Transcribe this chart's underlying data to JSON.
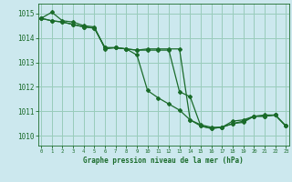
{
  "background_color": "#cce8ee",
  "grid_color": "#99ccbb",
  "line_color": "#1a6b2a",
  "xlabel": "Graphe pression niveau de la mer (hPa)",
  "ylim": [
    1009.6,
    1015.4
  ],
  "xlim": [
    -0.3,
    23.3
  ],
  "yticks": [
    1010,
    1011,
    1012,
    1013,
    1014,
    1015
  ],
  "xticks": [
    0,
    1,
    2,
    3,
    4,
    5,
    6,
    7,
    8,
    9,
    10,
    11,
    12,
    13,
    14,
    15,
    16,
    17,
    18,
    19,
    20,
    21,
    22,
    23
  ],
  "series": [
    [
      1014.8,
      1015.05,
      1014.7,
      1014.65,
      1014.5,
      1014.45,
      1013.55,
      1013.6,
      1013.55,
      1013.5,
      1013.55,
      1013.55,
      1013.55,
      1013.55,
      1010.65,
      1010.45,
      1010.35,
      1010.35,
      1010.6,
      1010.65,
      1010.8,
      1010.85,
      1010.85,
      1010.4
    ],
    [
      1014.8,
      1014.7,
      1014.65,
      1014.55,
      1014.45,
      1014.4,
      1013.6,
      1013.6,
      1013.55,
      1013.5,
      1013.5,
      1013.5,
      1013.5,
      1011.8,
      1011.6,
      1010.4,
      1010.3,
      1010.35,
      1010.5,
      1010.6,
      1010.8,
      1010.8,
      1010.85,
      1010.4
    ],
    [
      1014.8,
      1014.7,
      1014.65,
      1014.55,
      1014.45,
      1014.4,
      1013.6,
      1013.6,
      1013.55,
      1013.3,
      1011.85,
      1011.55,
      1011.3,
      1011.05,
      1010.65,
      1010.4,
      1010.3,
      1010.35,
      1010.5,
      1010.55,
      1010.8,
      1010.8,
      1010.85,
      1010.4
    ]
  ]
}
